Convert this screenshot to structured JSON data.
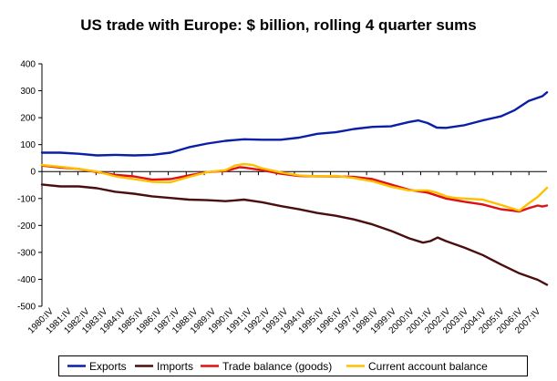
{
  "chart_data": {
    "type": "line",
    "title": "US trade with Europe: $ billion, rolling 4 quarter sums",
    "xlabel": "",
    "ylabel": "",
    "ylim": [
      -500,
      400
    ],
    "yticks": [
      400,
      300,
      200,
      100,
      0,
      -100,
      -200,
      -300,
      -400,
      -500
    ],
    "grid": false,
    "legend_position": "bottom",
    "x_categories": [
      "1980:IV",
      "1981:IV",
      "1982:IV",
      "1983:IV",
      "1984:IV",
      "1985:IV",
      "1986:IV",
      "1987:IV",
      "1988:IV",
      "1989:IV",
      "1990:IV",
      "1991:IV",
      "1992:IV",
      "1993:IV",
      "1994:IV",
      "1995:IV",
      "1996:IV",
      "1997:IV",
      "1998:IV",
      "1999:IV",
      "2000:IV",
      "2001:IV",
      "2002:IV",
      "2003:IV",
      "2004:IV",
      "2005:IV",
      "2006:IV",
      "2007:IV"
    ],
    "x_range": [
      1980.75,
      2008.25
    ],
    "series": [
      {
        "name": "Exports",
        "color": "#0a1ea8",
        "points": [
          [
            1980.75,
            70
          ],
          [
            1981.75,
            70
          ],
          [
            1982.75,
            66
          ],
          [
            1983.75,
            60
          ],
          [
            1984.75,
            62
          ],
          [
            1985.75,
            60
          ],
          [
            1986.75,
            62
          ],
          [
            1987.75,
            70
          ],
          [
            1988.75,
            90
          ],
          [
            1989.75,
            104
          ],
          [
            1990.75,
            114
          ],
          [
            1991.75,
            120
          ],
          [
            1992.75,
            118
          ],
          [
            1993.75,
            118
          ],
          [
            1994.75,
            126
          ],
          [
            1995.75,
            140
          ],
          [
            1996.75,
            146
          ],
          [
            1997.75,
            158
          ],
          [
            1998.75,
            166
          ],
          [
            1999.75,
            168
          ],
          [
            2000.75,
            184
          ],
          [
            2001.25,
            190
          ],
          [
            2001.75,
            180
          ],
          [
            2002.25,
            163
          ],
          [
            2002.75,
            162
          ],
          [
            2003.75,
            172
          ],
          [
            2004.75,
            190
          ],
          [
            2005.75,
            205
          ],
          [
            2006.5,
            228
          ],
          [
            2007.25,
            262
          ],
          [
            2008.0,
            280
          ],
          [
            2008.25,
            294
          ]
        ]
      },
      {
        "name": "Imports",
        "color": "#4a0e0e",
        "points": [
          [
            1980.75,
            -48
          ],
          [
            1981.75,
            -55
          ],
          [
            1982.75,
            -55
          ],
          [
            1983.75,
            -62
          ],
          [
            1984.75,
            -75
          ],
          [
            1985.75,
            -82
          ],
          [
            1986.75,
            -92
          ],
          [
            1987.75,
            -98
          ],
          [
            1988.75,
            -104
          ],
          [
            1989.75,
            -106
          ],
          [
            1990.75,
            -110
          ],
          [
            1991.75,
            -104
          ],
          [
            1992.75,
            -114
          ],
          [
            1993.75,
            -128
          ],
          [
            1994.75,
            -140
          ],
          [
            1995.75,
            -154
          ],
          [
            1996.75,
            -164
          ],
          [
            1997.75,
            -178
          ],
          [
            1998.75,
            -196
          ],
          [
            1999.75,
            -220
          ],
          [
            2000.75,
            -248
          ],
          [
            2001.5,
            -264
          ],
          [
            2001.9,
            -258
          ],
          [
            2002.3,
            -245
          ],
          [
            2002.75,
            -258
          ],
          [
            2003.75,
            -282
          ],
          [
            2004.75,
            -310
          ],
          [
            2005.75,
            -345
          ],
          [
            2006.75,
            -378
          ],
          [
            2007.75,
            -402
          ],
          [
            2008.25,
            -420
          ]
        ]
      },
      {
        "name": "Trade balance (goods)",
        "color": "#e01010",
        "points": [
          [
            1980.75,
            22
          ],
          [
            1981.75,
            15
          ],
          [
            1982.75,
            10
          ],
          [
            1983.75,
            -2
          ],
          [
            1984.75,
            -12
          ],
          [
            1985.75,
            -18
          ],
          [
            1986.75,
            -30
          ],
          [
            1987.75,
            -28
          ],
          [
            1988.75,
            -14
          ],
          [
            1989.75,
            -2
          ],
          [
            1990.75,
            2
          ],
          [
            1991.5,
            16
          ],
          [
            1991.75,
            15
          ],
          [
            1992.75,
            5
          ],
          [
            1993.75,
            -8
          ],
          [
            1994.75,
            -16
          ],
          [
            1995.75,
            -18
          ],
          [
            1996.75,
            -18
          ],
          [
            1997.75,
            -20
          ],
          [
            1998.75,
            -28
          ],
          [
            1999.75,
            -48
          ],
          [
            2000.75,
            -68
          ],
          [
            2001.75,
            -78
          ],
          [
            2002.75,
            -100
          ],
          [
            2003.75,
            -112
          ],
          [
            2004.75,
            -122
          ],
          [
            2005.75,
            -140
          ],
          [
            2006.75,
            -148
          ],
          [
            2007.25,
            -136
          ],
          [
            2007.75,
            -126
          ],
          [
            2008.0,
            -130
          ],
          [
            2008.25,
            -126
          ]
        ]
      },
      {
        "name": "Current account balance",
        "color": "#ffc000",
        "points": [
          [
            1980.75,
            24
          ],
          [
            1981.75,
            18
          ],
          [
            1982.75,
            10
          ],
          [
            1983.75,
            0
          ],
          [
            1984.75,
            -18
          ],
          [
            1985.75,
            -28
          ],
          [
            1986.75,
            -38
          ],
          [
            1987.75,
            -40
          ],
          [
            1988.75,
            -20
          ],
          [
            1989.75,
            -2
          ],
          [
            1990.75,
            5
          ],
          [
            1991.25,
            22
          ],
          [
            1991.75,
            28
          ],
          [
            1992.25,
            24
          ],
          [
            1992.75,
            12
          ],
          [
            1993.75,
            -3
          ],
          [
            1994.75,
            -14
          ],
          [
            1995.75,
            -18
          ],
          [
            1996.75,
            -16
          ],
          [
            1997.75,
            -24
          ],
          [
            1998.75,
            -36
          ],
          [
            1999.75,
            -56
          ],
          [
            2000.75,
            -70
          ],
          [
            2001.75,
            -70
          ],
          [
            2002.25,
            -78
          ],
          [
            2002.75,
            -92
          ],
          [
            2003.25,
            -98
          ],
          [
            2003.75,
            -100
          ],
          [
            2004.75,
            -104
          ],
          [
            2005.75,
            -124
          ],
          [
            2006.75,
            -145
          ],
          [
            2007.25,
            -118
          ],
          [
            2007.75,
            -94
          ],
          [
            2008.25,
            -60
          ]
        ]
      }
    ]
  }
}
